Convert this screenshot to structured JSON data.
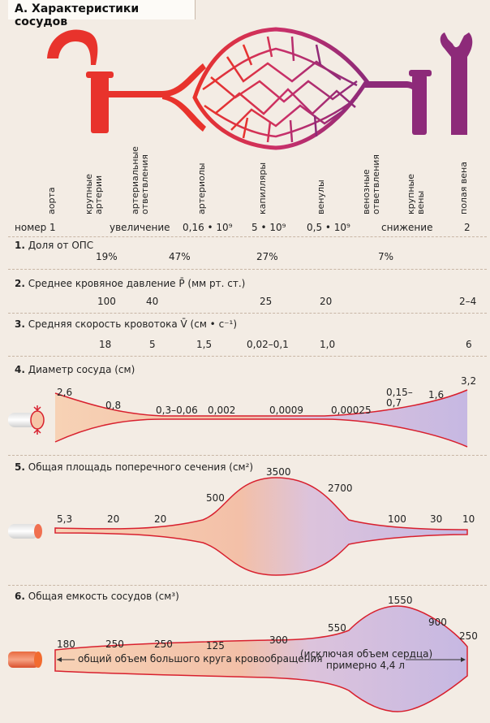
{
  "title": "А. Характеристики сосудов",
  "vessel_labels": [
    "аорта",
    "крупные\nартерии",
    "артериальные\nответвления",
    "артериолы",
    "капилляры",
    "венулы",
    "венозные\nответвления",
    "крупные\nвены",
    "полая вена"
  ],
  "row_number": {
    "label": "номер 1",
    "increase": "увеличение",
    "v1": "0,16 • 10⁹",
    "v2": "5 • 10⁹",
    "v3": "0,5 • 10⁹",
    "decrease": "снижение",
    "last": "2"
  },
  "sec1": {
    "num": "1.",
    "title": "Доля от ОПС",
    "values": [
      "19%",
      "47%",
      "27%",
      "7%"
    ]
  },
  "sec2": {
    "num": "2.",
    "title": "Среднее кровяное давление P̄ (мм рт. ст.)",
    "values": [
      "100",
      "40",
      "25",
      "20",
      "2–4"
    ]
  },
  "sec3": {
    "num": "3.",
    "title": "Средняя скорость кровотока V̄ (см • с⁻¹)",
    "values": [
      "18",
      "5",
      "1,5",
      "0,02–0,1",
      "1,0",
      "6"
    ]
  },
  "sec4": {
    "num": "4.",
    "title": "Диаметр сосуда (см)",
    "values": [
      "2,6",
      "0,8",
      "0,3–0,06",
      "0,002",
      "0,0009",
      "0,00025",
      "0,15–\n0,7",
      "1,6",
      "3,2"
    ]
  },
  "sec5": {
    "num": "5.",
    "title": "Общая площадь поперечного сечения (см²)",
    "values": [
      "5,3",
      "20",
      "20",
      "500",
      "3500",
      "2700",
      "100",
      "30",
      "10"
    ]
  },
  "sec6": {
    "num": "6.",
    "title": "Общая емкость сосудов (см³)",
    "values": [
      "180",
      "250",
      "250",
      "125",
      "300",
      "550",
      "1550",
      "900",
      "250"
    ],
    "note1": "общий объем большого круга кровообращения",
    "note2": "(исключая объем сердца)",
    "note3": "примерно 4,4 л"
  },
  "colors": {
    "artery": "#e8332c",
    "vein": "#8d2a79",
    "arterial_fill": "#f6c9ad",
    "venous_fill": "#c7b8e0",
    "outline": "#d8202e"
  }
}
